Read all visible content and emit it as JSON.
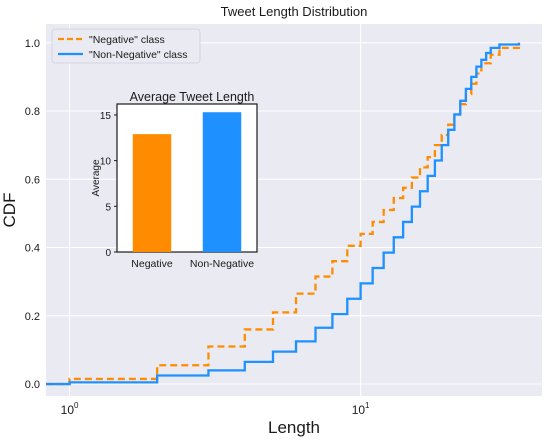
{
  "chart_data": [
    {
      "type": "line",
      "title": "Tweet Length Distribution",
      "xlabel": "Length",
      "ylabel": "CDF",
      "xscale": "log",
      "xlim": [
        0.83,
        42
      ],
      "ylim": [
        -0.035,
        1.055
      ],
      "xticks": [
        {
          "value": 1,
          "base": "10",
          "exp": "0"
        },
        {
          "value": 10,
          "base": "10",
          "exp": "1"
        }
      ],
      "yticks": [
        0.0,
        0.2,
        0.4,
        0.6,
        0.8,
        1.0
      ],
      "ytick_labels": [
        "0.0",
        "0.2",
        "0.4",
        "0.6",
        "0.8",
        "1.0"
      ],
      "grid": true,
      "legend_position": "top-left",
      "background_color": "#eaeaf2",
      "series": [
        {
          "name": "\"Negative\" class",
          "color": "#ff8c00",
          "style": "dashed",
          "x": [
            0.83,
            1,
            2,
            3,
            4,
            5,
            6,
            7,
            8,
            9,
            10,
            11,
            12,
            13,
            14,
            15,
            16,
            17,
            18,
            19,
            20,
            21,
            22,
            23,
            24,
            25,
            26,
            28,
            30,
            35
          ],
          "y": [
            0.0,
            0.015,
            0.055,
            0.11,
            0.16,
            0.21,
            0.265,
            0.315,
            0.36,
            0.405,
            0.44,
            0.475,
            0.51,
            0.545,
            0.575,
            0.605,
            0.635,
            0.665,
            0.7,
            0.73,
            0.76,
            0.79,
            0.82,
            0.85,
            0.88,
            0.91,
            0.94,
            0.965,
            0.985,
            1.0
          ]
        },
        {
          "name": "\"Non-Negative\" class",
          "color": "#1e90ff",
          "style": "solid",
          "x": [
            0.83,
            1,
            2,
            3,
            4,
            5,
            6,
            7,
            8,
            9,
            10,
            11,
            12,
            13,
            14,
            15,
            16,
            17,
            18,
            19,
            20,
            21,
            22,
            23,
            24,
            25,
            26,
            27,
            28,
            30,
            35
          ],
          "y": [
            0.0,
            0.005,
            0.025,
            0.04,
            0.065,
            0.095,
            0.125,
            0.165,
            0.205,
            0.25,
            0.295,
            0.34,
            0.385,
            0.43,
            0.475,
            0.52,
            0.565,
            0.61,
            0.655,
            0.7,
            0.745,
            0.79,
            0.83,
            0.865,
            0.9,
            0.93,
            0.95,
            0.97,
            0.985,
            0.995,
            1.0
          ]
        }
      ]
    },
    {
      "type": "bar",
      "title": "Average Tweet Length",
      "xlabel": "",
      "ylabel": "Average",
      "categories": [
        "Negative",
        "Non-Negative"
      ],
      "values": [
        12.9,
        15.3
      ],
      "colors": [
        "#ff8c00",
        "#1e90ff"
      ],
      "ylim": [
        0,
        16.2
      ],
      "yticks": [
        0,
        5,
        10,
        15
      ],
      "grid": false,
      "background_color": "#ffffff"
    }
  ]
}
